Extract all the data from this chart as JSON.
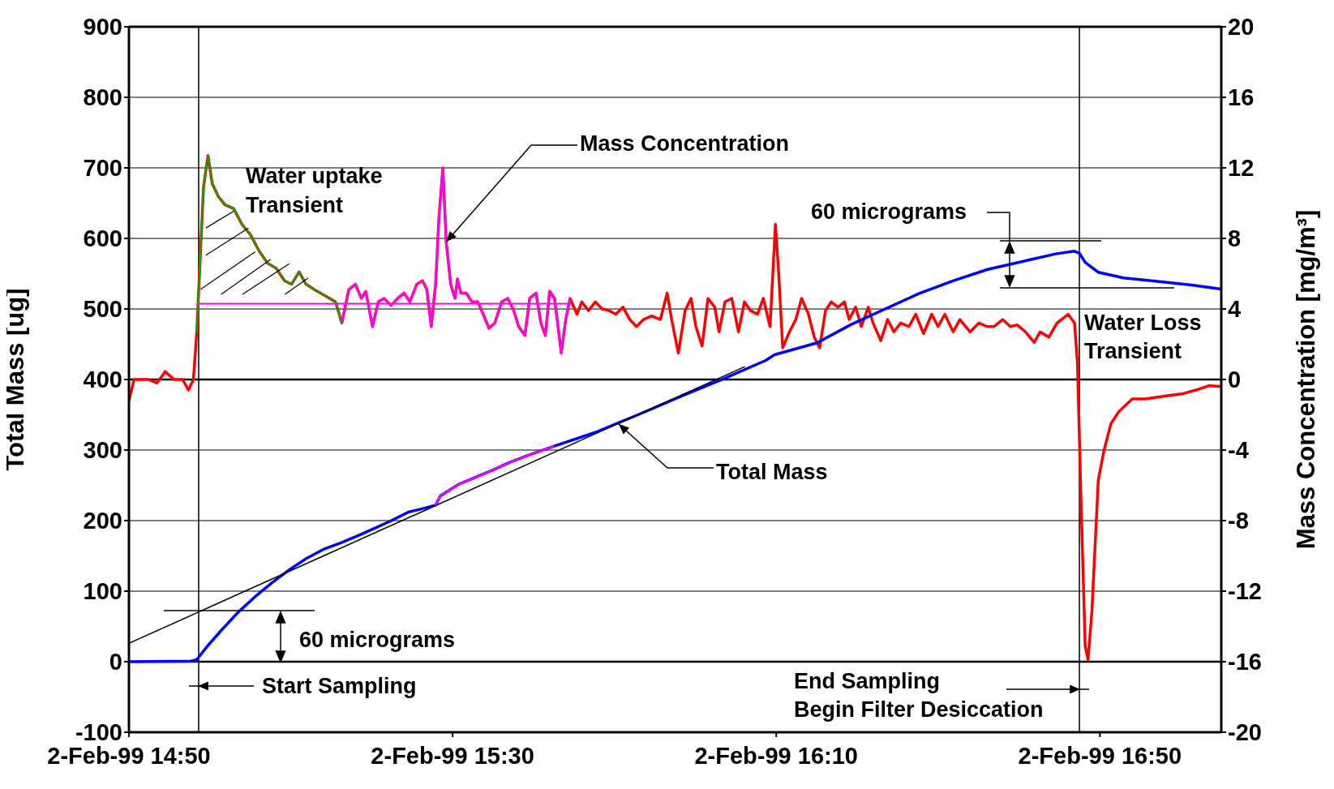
{
  "chart_data": {
    "type": "line",
    "ylabel": "Total Mass  [ug]",
    "y2label": "Mass Concentration  [mg/m³]",
    "xlim": [
      "1999-02-02T14:50",
      "1999-02-02T17:05"
    ],
    "xticks": [
      {
        "value": "1999-02-02T14:50",
        "label": "2-Feb-99 14:50"
      },
      {
        "value": "1999-02-02T15:30",
        "label": "2-Feb-99 15:30"
      },
      {
        "value": "1999-02-02T16:10",
        "label": "2-Feb-99 16:10"
      },
      {
        "value": "1999-02-02T16:50",
        "label": "2-Feb-99 16:50"
      }
    ],
    "ylim": [
      -100,
      900
    ],
    "yticks": [
      -100,
      0,
      100,
      200,
      300,
      400,
      500,
      600,
      700,
      800,
      900
    ],
    "y2lim": [
      -20,
      20
    ],
    "y2ticks": [
      -20,
      -16,
      -12,
      -8,
      -4,
      0,
      4,
      8,
      12,
      16,
      20
    ],
    "grid": "y",
    "series": [
      {
        "axis": "y2",
        "color": "#ff0000",
        "x": [
          "1999-02-02T14:50:00",
          "1999-02-02T14:50:38",
          "1999-02-02T14:52:23",
          "1999-02-02T14:53:28",
          "1999-02-02T14:54:29",
          "1999-02-02T14:55:34",
          "1999-02-02T14:56:38",
          "1999-02-02T14:57:22",
          "1999-02-02T14:57:58",
          "1999-02-02T14:58:23",
          "1999-02-02T14:58:48",
          "1999-02-02T14:59:13",
          "1999-02-02T14:59:46",
          "1999-02-02T15:00:18",
          "1999-02-02T15:01:01",
          "1999-02-02T15:01:52",
          "1999-02-02T15:02:56",
          "1999-02-02T15:03:58",
          "1999-02-02T15:05:02",
          "1999-02-02T15:06:04",
          "1999-02-02T15:07:08",
          "1999-02-02T15:08:13",
          "1999-02-02T15:09:14",
          "1999-02-02T15:10:05",
          "1999-02-02T15:11:02",
          "1999-02-02T15:11:53",
          "1999-02-02T15:12:54",
          "1999-02-02T15:14:49",
          "1999-02-02T15:15:32",
          "1999-02-02T15:16:19",
          "1999-02-02T15:17:10",
          "1999-02-02T15:18:00",
          "1999-02-02T15:18:43",
          "1999-02-02T15:19:16",
          "1999-02-02T15:20:06",
          "1999-02-02T15:20:49",
          "1999-02-02T15:21:32",
          "1999-02-02T15:22:23",
          "1999-02-02T15:23:13",
          "1999-02-02T15:24:00",
          "1999-02-02T15:24:43",
          "1999-02-02T15:25:34",
          "1999-02-02T15:26:17",
          "1999-02-02T15:26:49",
          "1999-02-02T15:27:22",
          "1999-02-02T15:27:54",
          "1999-02-02T15:28:19",
          "1999-02-02T15:28:48",
          "1999-02-02T15:29:13",
          "1999-02-02T15:29:46",
          "1999-02-02T15:30:18",
          "1999-02-02T15:30:36",
          "1999-02-02T15:31:01",
          "1999-02-02T15:31:41",
          "1999-02-02T15:32:24",
          "1999-02-02T15:33:07",
          "1999-02-02T15:33:47",
          "1999-02-02T15:34:30",
          "1999-02-02T15:35:13",
          "1999-02-02T15:36:04",
          "1999-02-02T15:36:50",
          "1999-02-02T15:37:34",
          "1999-02-02T15:38:10",
          "1999-02-02T15:38:56",
          "1999-02-02T15:39:32",
          "1999-02-02T15:40:19",
          "1999-02-02T15:40:55",
          "1999-02-02T15:41:28",
          "1999-02-02T15:42:00",
          "1999-02-02T15:42:36",
          "1999-02-02T15:43:26",
          "1999-02-02T15:43:59",
          "1999-02-02T15:44:31",
          "1999-02-02T15:45:22",
          "1999-02-02T15:45:58",
          "1999-02-02T15:46:48",
          "1999-02-02T15:47:38",
          "1999-02-02T15:48:29",
          "1999-02-02T15:49:19",
          "1999-02-02T15:50:10",
          "1999-02-02T15:51:04",
          "1999-02-02T15:51:54",
          "1999-02-02T15:52:44",
          "1999-02-02T15:53:35",
          "1999-02-02T15:54:36",
          "1999-02-02T15:55:41",
          "1999-02-02T15:56:31",
          "1999-02-02T15:57:07",
          "1999-02-02T15:57:54",
          "1999-02-02T15:58:44",
          "1999-02-02T15:59:28",
          "1999-02-02T16:00:04",
          "1999-02-02T16:00:50",
          "1999-02-02T16:01:34",
          "1999-02-02T16:02:24",
          "1999-02-02T16:02:56",
          "1999-02-02T16:03:40",
          "1999-02-02T16:04:30",
          "1999-02-02T16:05:20",
          "1999-02-02T16:06:04",
          "1999-02-02T16:06:50",
          "1999-02-02T16:07:41",
          "1999-02-02T16:08:24",
          "1999-02-02T16:09:14",
          "1999-02-02T16:09:54",
          "1999-02-02T16:10:19",
          "1999-02-02T16:10:48",
          "1999-02-02T16:11:38",
          "1999-02-02T16:12:25",
          "1999-02-02T16:13:08",
          "1999-02-02T16:13:59",
          "1999-02-02T16:14:42",
          "1999-02-02T16:15:22",
          "1999-02-02T16:16:05",
          "1999-02-02T16:16:48",
          "1999-02-02T16:17:38",
          "1999-02-02T16:18:25",
          "1999-02-02T16:19:01",
          "1999-02-02T16:19:48",
          "1999-02-02T16:20:31",
          "1999-02-02T16:21:22",
          "1999-02-02T16:21:58",
          "1999-02-02T16:22:55",
          "1999-02-02T16:23:46",
          "1999-02-02T16:24:32",
          "1999-02-02T16:25:23",
          "1999-02-02T16:26:24",
          "1999-02-02T16:27:14",
          "1999-02-02T16:28:12",
          "1999-02-02T16:29:13",
          "1999-02-02T16:30:00",
          "1999-02-02T16:30:50",
          "1999-02-02T16:31:52",
          "1999-02-02T16:32:42",
          "1999-02-02T16:33:58",
          "1999-02-02T16:35:02",
          "1999-02-02T16:36:04",
          "1999-02-02T16:36:54",
          "1999-02-02T16:37:59",
          "1999-02-02T16:38:56",
          "1999-02-02T16:39:47",
          "1999-02-02T16:40:48",
          "1999-02-02T16:41:53",
          "1999-02-02T16:42:36",
          "1999-02-02T16:43:41",
          "1999-02-02T16:44:42",
          "1999-02-02T16:46:05",
          "1999-02-02T16:46:52",
          "1999-02-02T16:47:13",
          "1999-02-02T16:47:42",
          "1999-02-02T16:48:11",
          "1999-02-02T16:48:32",
          "1999-02-02T16:49:01",
          "1999-02-02T16:49:48",
          "1999-02-02T16:50:31",
          "1999-02-02T16:51:22",
          "1999-02-02T16:52:23",
          "1999-02-02T16:54:00",
          "1999-02-02T16:55:34",
          "1999-02-02T16:57:07",
          "1999-02-02T16:58:44",
          "1999-02-02T17:00:18",
          "1999-02-02T17:01:52",
          "1999-02-02T17:03:29",
          "1999-02-02T17:05:00"
        ],
        "values": [
          -1.2,
          0,
          0,
          -0.2,
          0.45,
          0,
          0,
          -0.6,
          0,
          2.7,
          6.8,
          10.9,
          12.7,
          11.1,
          10.4,
          9.9,
          9.7,
          8.8,
          8.2,
          7.3,
          6.6,
          6.3,
          5.6,
          5.4,
          6.1,
          5.4,
          5.1,
          4.6,
          4.4,
          3.2,
          5.1,
          5.4,
          4.6,
          5.0,
          3.0,
          4.4,
          4.6,
          4.2,
          4.6,
          4.9,
          4.4,
          5.4,
          5.6,
          5.1,
          3.0,
          5.4,
          9.2,
          12.0,
          7.8,
          5.4,
          4.6,
          5.7,
          4.9,
          4.9,
          4.4,
          4.4,
          3.7,
          2.9,
          3.2,
          4.4,
          4.6,
          3.9,
          3.0,
          2.5,
          4.6,
          4.9,
          3.2,
          2.5,
          5.0,
          4.6,
          1.5,
          3.4,
          4.6,
          3.7,
          4.4,
          3.9,
          4.4,
          4.0,
          3.9,
          3.7,
          4.1,
          3.4,
          3.0,
          3.4,
          3.6,
          3.4,
          4.9,
          3.3,
          1.5,
          3.9,
          4.6,
          3.0,
          1.9,
          4.6,
          4.1,
          2.7,
          4.4,
          4.6,
          2.7,
          4.4,
          3.9,
          3.7,
          4.6,
          3.0,
          8.8,
          5.9,
          1.8,
          2.7,
          3.4,
          4.6,
          3.7,
          2.4,
          1.8,
          3.9,
          4.4,
          4.1,
          4.4,
          3.4,
          4.1,
          3.0,
          4.1,
          3.2,
          2.2,
          3.4,
          2.7,
          3.2,
          3.0,
          3.7,
          2.6,
          3.7,
          3.0,
          3.7,
          2.7,
          3.4,
          2.7,
          3.2,
          3.0,
          3.0,
          3.4,
          3.0,
          3.1,
          2.7,
          2.1,
          2.7,
          2.4,
          3.2,
          3.7,
          3.2,
          1.0,
          -7.4,
          -15.1,
          -15.9,
          -13.1,
          -5.7,
          -4.0,
          -2.5,
          -1.8,
          -1.1,
          -1.1,
          -1.0,
          -0.9,
          -0.8,
          -0.6,
          -0.35,
          -0.4
        ]
      },
      {
        "axis": "y",
        "color": "#0000ff",
        "x": [
          "1999-02-02T14:50:00",
          "1999-02-02T14:57:40",
          "1999-02-02T14:58:23",
          "1999-02-02T14:59:46",
          "1999-02-02T15:01:23",
          "1999-02-02T15:03:29",
          "1999-02-02T15:05:35",
          "1999-02-02T15:07:41",
          "1999-02-02T15:09:47",
          "1999-02-02T15:11:53",
          "1999-02-02T15:13:59",
          "1999-02-02T15:16:05",
          "1999-02-02T15:18:11",
          "1999-02-02T15:20:20",
          "1999-02-02T15:22:26",
          "1999-02-02T15:24:32",
          "1999-02-02T15:26:38",
          "1999-02-02T15:27:54",
          "1999-02-02T15:28:30",
          "1999-02-02T15:30:50",
          "1999-02-02T15:32:56",
          "1999-02-02T15:35:02",
          "1999-02-02T15:37:08",
          "1999-02-02T15:39:14",
          "1999-02-02T15:42:25",
          "1999-02-02T15:47:38",
          "1999-02-02T15:52:55",
          "1999-02-02T15:58:12",
          "1999-02-02T16:03:29",
          "1999-02-02T16:08:42",
          "1999-02-02T16:09:47",
          "1999-02-02T16:15:04",
          "1999-02-02T16:19:16",
          "1999-02-02T16:23:28",
          "1999-02-02T16:27:40",
          "1999-02-02T16:31:55",
          "1999-02-02T16:36:07",
          "1999-02-02T16:40:19",
          "1999-02-02T16:44:31",
          "1999-02-02T16:46:48",
          "1999-02-02T16:47:28",
          "1999-02-02T16:48:11",
          "1999-02-02T16:49:48",
          "1999-02-02T16:52:55",
          "1999-02-02T16:57:07",
          "1999-02-02T17:01:19",
          "1999-02-02T17:05:00"
        ],
        "values": [
          0,
          1,
          3,
          23,
          44,
          70,
          92,
          112,
          130,
          146,
          159,
          168,
          178,
          189,
          200,
          212,
          218,
          222,
          235,
          252,
          262,
          272,
          283,
          292,
          305,
          325,
          350,
          376,
          401,
          427,
          435,
          452,
          478,
          500,
          522,
          540,
          556,
          567,
          578,
          582,
          579,
          566,
          552,
          544,
          539,
          534,
          528
        ]
      },
      {
        "axis": "y2",
        "color": "#ff00ff",
        "x": [
          "1999-02-02T15:16:19",
          "1999-02-02T15:17:10",
          "1999-02-02T15:18:00",
          "1999-02-02T15:18:43",
          "1999-02-02T15:19:16",
          "1999-02-02T15:20:06",
          "1999-02-02T15:20:49",
          "1999-02-02T15:21:32",
          "1999-02-02T15:22:23",
          "1999-02-02T15:23:13",
          "1999-02-02T15:24:00",
          "1999-02-02T15:24:43",
          "1999-02-02T15:25:34",
          "1999-02-02T15:26:17",
          "1999-02-02T15:26:49",
          "1999-02-02T15:27:22",
          "1999-02-02T15:27:54",
          "1999-02-02T15:28:19",
          "1999-02-02T15:28:48",
          "1999-02-02T15:29:13",
          "1999-02-02T15:29:46",
          "1999-02-02T15:30:18",
          "1999-02-02T15:30:36",
          "1999-02-02T15:31:01",
          "1999-02-02T15:31:41",
          "1999-02-02T15:32:24",
          "1999-02-02T15:33:07",
          "1999-02-02T15:33:47",
          "1999-02-02T15:34:30",
          "1999-02-02T15:35:13",
          "1999-02-02T15:36:04",
          "1999-02-02T15:36:50",
          "1999-02-02T15:37:34",
          "1999-02-02T15:38:10",
          "1999-02-02T15:38:56",
          "1999-02-02T15:39:32",
          "1999-02-02T15:40:19",
          "1999-02-02T15:40:55",
          "1999-02-02T15:41:28",
          "1999-02-02T15:42:00",
          "1999-02-02T15:42:36",
          "1999-02-02T15:43:26",
          "1999-02-02T15:43:59",
          "1999-02-02T15:44:31"
        ],
        "values": [
          3.2,
          5.1,
          5.4,
          4.6,
          5.0,
          3.0,
          4.4,
          4.6,
          4.2,
          4.6,
          4.9,
          4.4,
          5.4,
          5.6,
          5.1,
          3.0,
          5.4,
          9.2,
          12.0,
          7.8,
          5.4,
          4.6,
          5.7,
          4.9,
          4.9,
          4.4,
          4.4,
          3.7,
          2.9,
          3.2,
          4.4,
          4.6,
          3.9,
          3.0,
          2.5,
          4.6,
          4.9,
          3.2,
          2.5,
          5.0,
          4.6,
          1.5,
          3.4,
          4.6
        ]
      },
      {
        "axis": "y2",
        "color": "#00b000",
        "x": [
          "1999-02-02T14:58:23",
          "1999-02-02T14:58:48",
          "1999-02-02T14:59:13",
          "1999-02-02T14:59:46",
          "1999-02-02T15:00:18",
          "1999-02-02T15:01:01",
          "1999-02-02T15:01:52",
          "1999-02-02T15:02:56",
          "1999-02-02T15:03:58",
          "1999-02-02T15:05:02",
          "1999-02-02T15:06:04",
          "1999-02-02T15:07:08",
          "1999-02-02T15:08:13",
          "1999-02-02T15:09:14",
          "1999-02-02T15:10:05",
          "1999-02-02T15:11:02",
          "1999-02-02T15:11:53",
          "1999-02-02T15:12:54",
          "1999-02-02T15:14:49",
          "1999-02-02T15:15:32",
          "1999-02-02T15:16:19"
        ],
        "values": [
          2.7,
          6.8,
          10.9,
          12.7,
          11.1,
          10.4,
          9.9,
          9.7,
          8.8,
          8.2,
          7.3,
          6.6,
          6.3,
          5.6,
          5.4,
          6.1,
          5.4,
          5.1,
          4.6,
          4.4,
          3.2
        ]
      },
      {
        "axis": "y",
        "color": "#ff00ff",
        "x": [
          "1999-02-02T15:27:54",
          "1999-02-02T15:28:30",
          "1999-02-02T15:30:50",
          "1999-02-02T15:32:56",
          "1999-02-02T15:35:02",
          "1999-02-02T15:37:08",
          "1999-02-02T15:39:14",
          "1999-02-02T15:42:25"
        ],
        "values": [
          222,
          235,
          252,
          262,
          272,
          283,
          292,
          305
        ]
      },
      {
        "axis": "y2",
        "color": "#ff00ff",
        "x": [
          "1999-02-02T14:58:37",
          "1999-02-02T15:44:31"
        ],
        "values": [
          4.3,
          4.3
        ]
      },
      {
        "axis": "y",
        "color": "#000000",
        "x": [
          "1999-02-02T14:50:00",
          "1999-02-02T16:06:04"
        ],
        "values": [
          26,
          418
        ]
      }
    ],
    "ref_lines": [
      {
        "axis": "y2",
        "value": 0,
        "color": "#000000"
      },
      {
        "axis": "y",
        "value": 0,
        "color": "#000000"
      },
      {
        "axis": "x",
        "value": "1999-02-02T14:58:37",
        "label": "Start Sampling",
        "color": "#000000"
      },
      {
        "axis": "x",
        "value": "1999-02-02T16:47:28",
        "label": "End Sampling\nBegin Filter Desiccation",
        "color": "#000000"
      }
    ],
    "annotations": [
      {
        "text": "Mass Concentration",
        "x": "1999-02-02T15:29:13",
        "y": 595
      },
      {
        "text": "Total Mass",
        "x": "1999-02-02T15:50:31",
        "y": 337
      },
      {
        "text": "Water uptake\nTransient",
        "x": "1999-02-02T15:02:56",
        "y": 642
      },
      "60 micrograms",
      "60 micrograms",
      "Water Loss\nTransient"
    ]
  }
}
